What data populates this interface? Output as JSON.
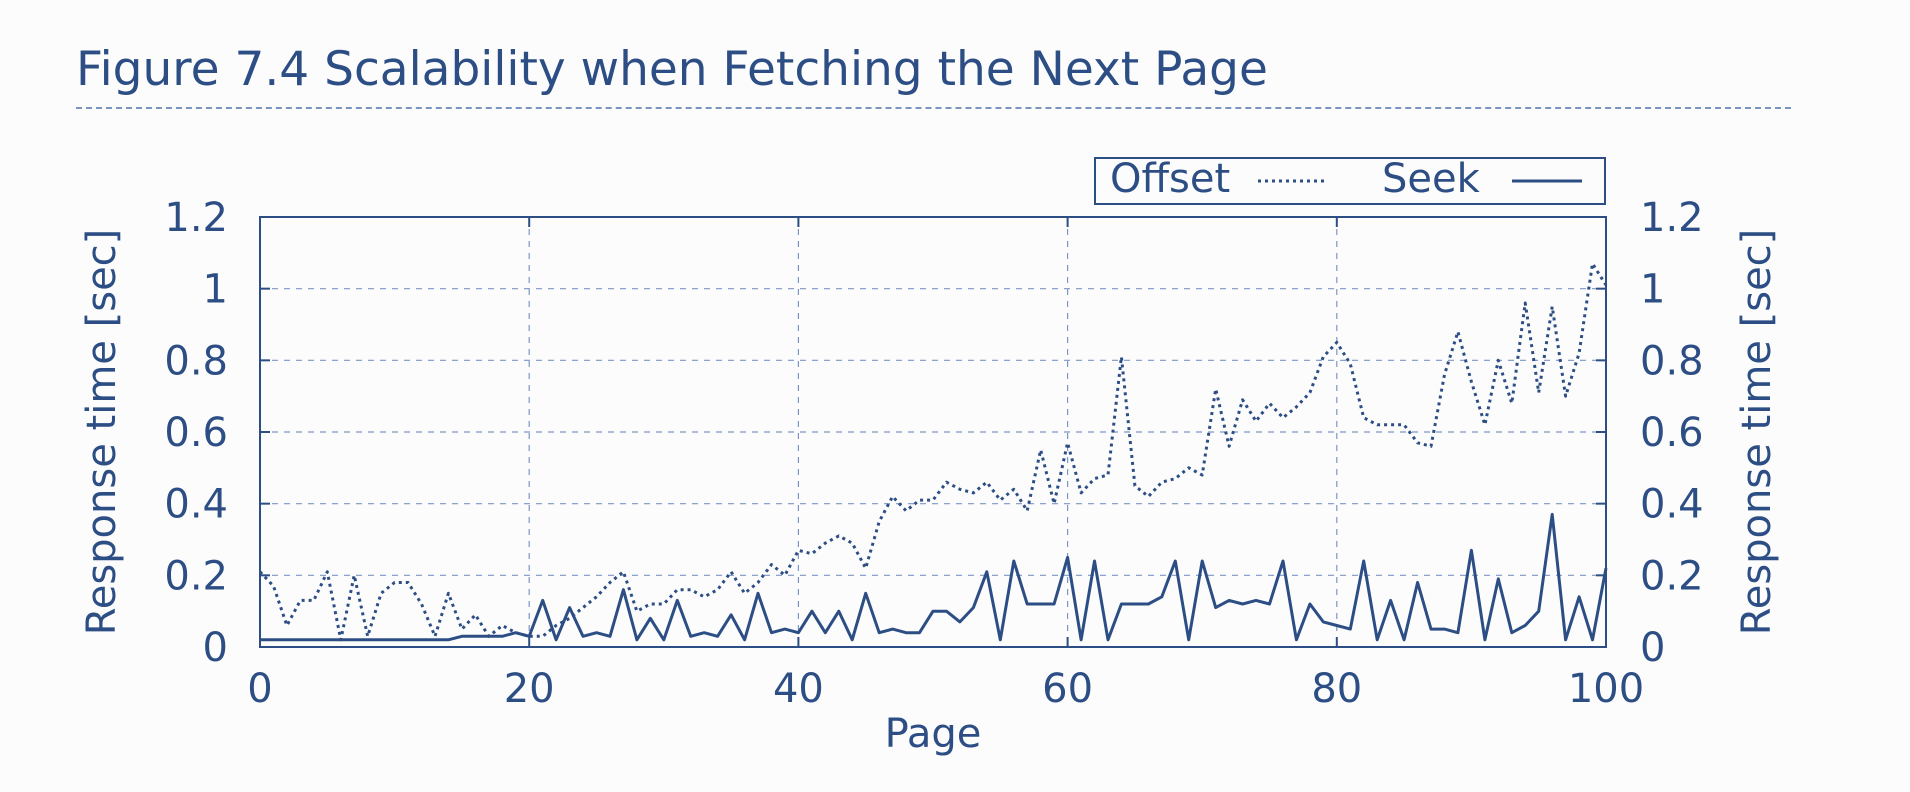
{
  "figure": {
    "title": "Figure 7.4 Scalability when Fetching the Next Page"
  },
  "colors": {
    "ink": "#2c4e85",
    "grid": "#7d96c4",
    "background": "#fcfcfc"
  },
  "chart_data": {
    "type": "line",
    "xlabel": "Page",
    "ylabel": "Response time [sec]",
    "ylabel_right": "Response time [sec]",
    "xlim": [
      0,
      100
    ],
    "ylim": [
      0,
      1.2
    ],
    "x_ticks": [
      "0",
      "20",
      "40",
      "60",
      "80",
      "100"
    ],
    "y_ticks": [
      "0",
      "0.2",
      "0.4",
      "0.6",
      "0.8",
      "1",
      "1.2"
    ],
    "grid": true,
    "legend_position": "top-right",
    "x": [
      0,
      1,
      2,
      3,
      4,
      5,
      6,
      7,
      8,
      9,
      10,
      11,
      12,
      13,
      14,
      15,
      16,
      17,
      18,
      19,
      20,
      21,
      22,
      23,
      24,
      25,
      26,
      27,
      28,
      29,
      30,
      31,
      32,
      33,
      34,
      35,
      36,
      37,
      38,
      39,
      40,
      41,
      42,
      43,
      44,
      45,
      46,
      47,
      48,
      49,
      50,
      51,
      52,
      53,
      54,
      55,
      56,
      57,
      58,
      59,
      60,
      61,
      62,
      63,
      64,
      65,
      66,
      67,
      68,
      69,
      70,
      71,
      72,
      73,
      74,
      75,
      76,
      77,
      78,
      79,
      80,
      81,
      82,
      83,
      84,
      85,
      86,
      87,
      88,
      89,
      90,
      91,
      92,
      93,
      94,
      95,
      96,
      97,
      98,
      99,
      100
    ],
    "series": [
      {
        "name": "Offset",
        "style": "dotted",
        "values": [
          0.21,
          0.17,
          0.06,
          0.13,
          0.13,
          0.21,
          0.02,
          0.2,
          0.03,
          0.15,
          0.18,
          0.18,
          0.12,
          0.03,
          0.15,
          0.05,
          0.09,
          0.03,
          0.06,
          0.04,
          0.03,
          0.03,
          0.06,
          0.08,
          0.11,
          0.14,
          0.18,
          0.21,
          0.1,
          0.12,
          0.12,
          0.16,
          0.16,
          0.14,
          0.16,
          0.21,
          0.15,
          0.18,
          0.23,
          0.2,
          0.27,
          0.26,
          0.29,
          0.31,
          0.29,
          0.22,
          0.35,
          0.42,
          0.38,
          0.41,
          0.41,
          0.46,
          0.44,
          0.43,
          0.46,
          0.41,
          0.44,
          0.38,
          0.55,
          0.4,
          0.57,
          0.43,
          0.47,
          0.48,
          0.81,
          0.45,
          0.42,
          0.46,
          0.47,
          0.5,
          0.48,
          0.72,
          0.56,
          0.69,
          0.63,
          0.68,
          0.64,
          0.67,
          0.71,
          0.81,
          0.85,
          0.79,
          0.64,
          0.62,
          0.62,
          0.62,
          0.57,
          0.56,
          0.76,
          0.88,
          0.74,
          0.62,
          0.8,
          0.68,
          0.96,
          0.71,
          0.95,
          0.7,
          0.82,
          1.07,
          1.01
        ]
      },
      {
        "name": "Seek",
        "style": "solid",
        "values": [
          0.02,
          0.02,
          0.02,
          0.02,
          0.02,
          0.02,
          0.02,
          0.02,
          0.02,
          0.02,
          0.02,
          0.02,
          0.02,
          0.02,
          0.02,
          0.03,
          0.03,
          0.03,
          0.03,
          0.04,
          0.03,
          0.13,
          0.02,
          0.11,
          0.03,
          0.04,
          0.03,
          0.16,
          0.02,
          0.08,
          0.02,
          0.13,
          0.03,
          0.04,
          0.03,
          0.09,
          0.02,
          0.15,
          0.04,
          0.05,
          0.04,
          0.1,
          0.04,
          0.1,
          0.02,
          0.15,
          0.04,
          0.05,
          0.04,
          0.04,
          0.1,
          0.1,
          0.07,
          0.11,
          0.21,
          0.02,
          0.24,
          0.12,
          0.12,
          0.12,
          0.25,
          0.02,
          0.24,
          0.02,
          0.12,
          0.12,
          0.12,
          0.14,
          0.24,
          0.02,
          0.24,
          0.11,
          0.13,
          0.12,
          0.13,
          0.12,
          0.24,
          0.02,
          0.12,
          0.07,
          0.06,
          0.05,
          0.24,
          0.02,
          0.13,
          0.02,
          0.18,
          0.05,
          0.05,
          0.04,
          0.27,
          0.02,
          0.19,
          0.04,
          0.06,
          0.1,
          0.37,
          0.02,
          0.14,
          0.02,
          0.22
        ]
      }
    ]
  }
}
